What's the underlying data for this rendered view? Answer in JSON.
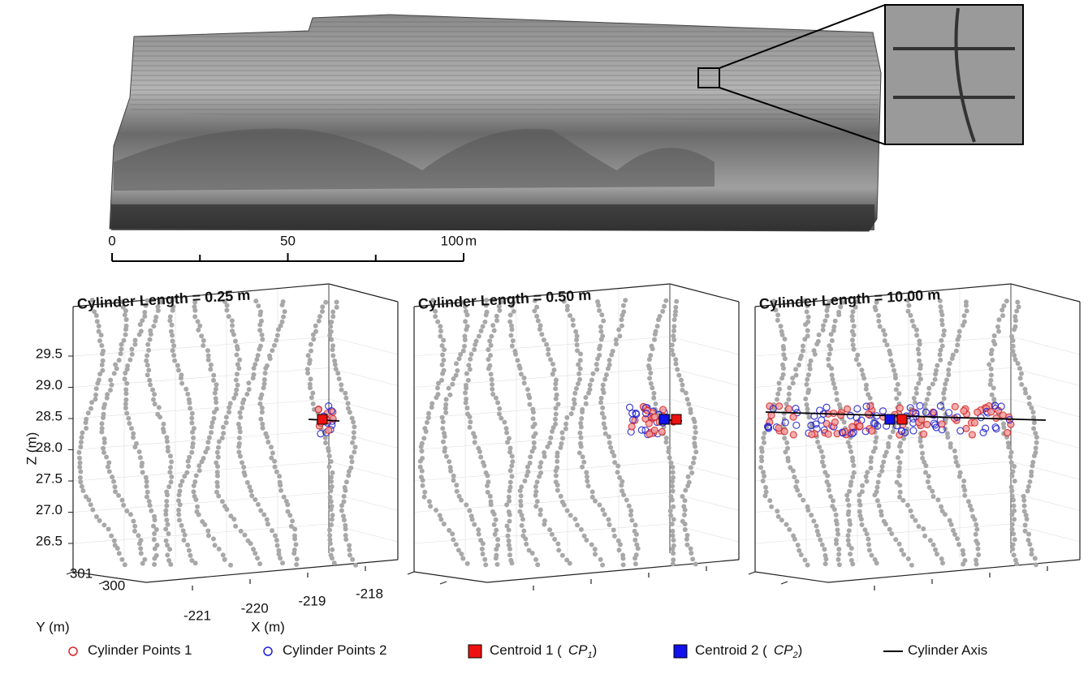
{
  "scale_bar": {
    "ticks": [
      0,
      50,
      100
    ],
    "unit": "m"
  },
  "panels": [
    {
      "title": "Cylinder Length = 0.25 m"
    },
    {
      "title": "Cylinder Length = 0.50 m"
    },
    {
      "title": "Cylinder Length = 10.00 m"
    }
  ],
  "axes": {
    "z_label": "Z (m)",
    "z_ticks": [
      26.5,
      27.0,
      27.5,
      28.0,
      28.5,
      29.0,
      29.5
    ],
    "z_tick_labels": [
      "26.5",
      "27.0",
      "27.5",
      "28.0",
      "28.5",
      "29.0",
      "29.5"
    ],
    "y_label": "Y (m)",
    "y_ticks": [
      301,
      300
    ],
    "x_label": "X (m)",
    "x_ticks": [
      -221,
      -220,
      -219,
      -218
    ]
  },
  "legend": [
    {
      "label": "Cylinder Points 1",
      "color": "#d62728",
      "marker": "open-circle"
    },
    {
      "label": "Cylinder Points 2",
      "color": "#1f1fd0",
      "marker": "open-circle"
    },
    {
      "label": "Centroid 1",
      "symbol": "CP",
      "subscript": "1",
      "color": "#ee1111",
      "marker": "square"
    },
    {
      "label": "Centroid 2",
      "symbol": "CP",
      "subscript": "2",
      "color": "#1111ee",
      "marker": "square"
    },
    {
      "label": "Cylinder Axis",
      "color": "#000000",
      "marker": "line"
    }
  ]
}
